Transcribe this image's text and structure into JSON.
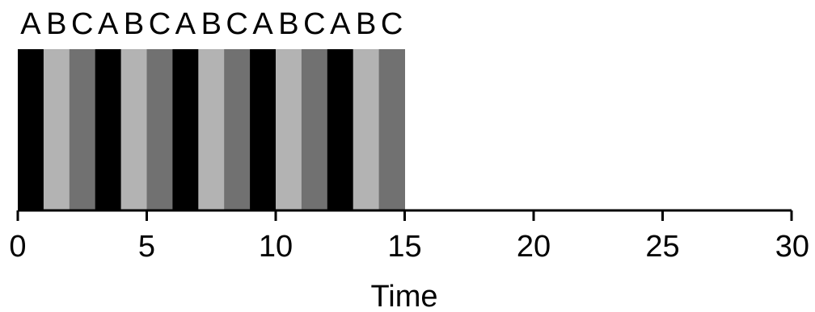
{
  "chart_data": {
    "type": "timeline",
    "xlabel": "Time",
    "xlim": [
      0,
      30
    ],
    "ticks": [
      0,
      5,
      10,
      15,
      20,
      25,
      30
    ],
    "tick_labels": [
      "0",
      "5",
      "10",
      "15",
      "20",
      "25",
      "30"
    ],
    "colors": {
      "A": "#000000",
      "B": "#b3b3b3",
      "C": "#717171"
    },
    "segments": [
      {
        "label": "A",
        "start": 0,
        "end": 1
      },
      {
        "label": "B",
        "start": 1,
        "end": 2
      },
      {
        "label": "C",
        "start": 2,
        "end": 3
      },
      {
        "label": "A",
        "start": 3,
        "end": 4
      },
      {
        "label": "B",
        "start": 4,
        "end": 5
      },
      {
        "label": "C",
        "start": 5,
        "end": 6
      },
      {
        "label": "A",
        "start": 6,
        "end": 7
      },
      {
        "label": "B",
        "start": 7,
        "end": 8
      },
      {
        "label": "C",
        "start": 8,
        "end": 9
      },
      {
        "label": "A",
        "start": 9,
        "end": 10
      },
      {
        "label": "B",
        "start": 10,
        "end": 11
      },
      {
        "label": "C",
        "start": 11,
        "end": 12
      },
      {
        "label": "A",
        "start": 12,
        "end": 13
      },
      {
        "label": "B",
        "start": 13,
        "end": 14
      },
      {
        "label": "C",
        "start": 14,
        "end": 15
      }
    ]
  }
}
